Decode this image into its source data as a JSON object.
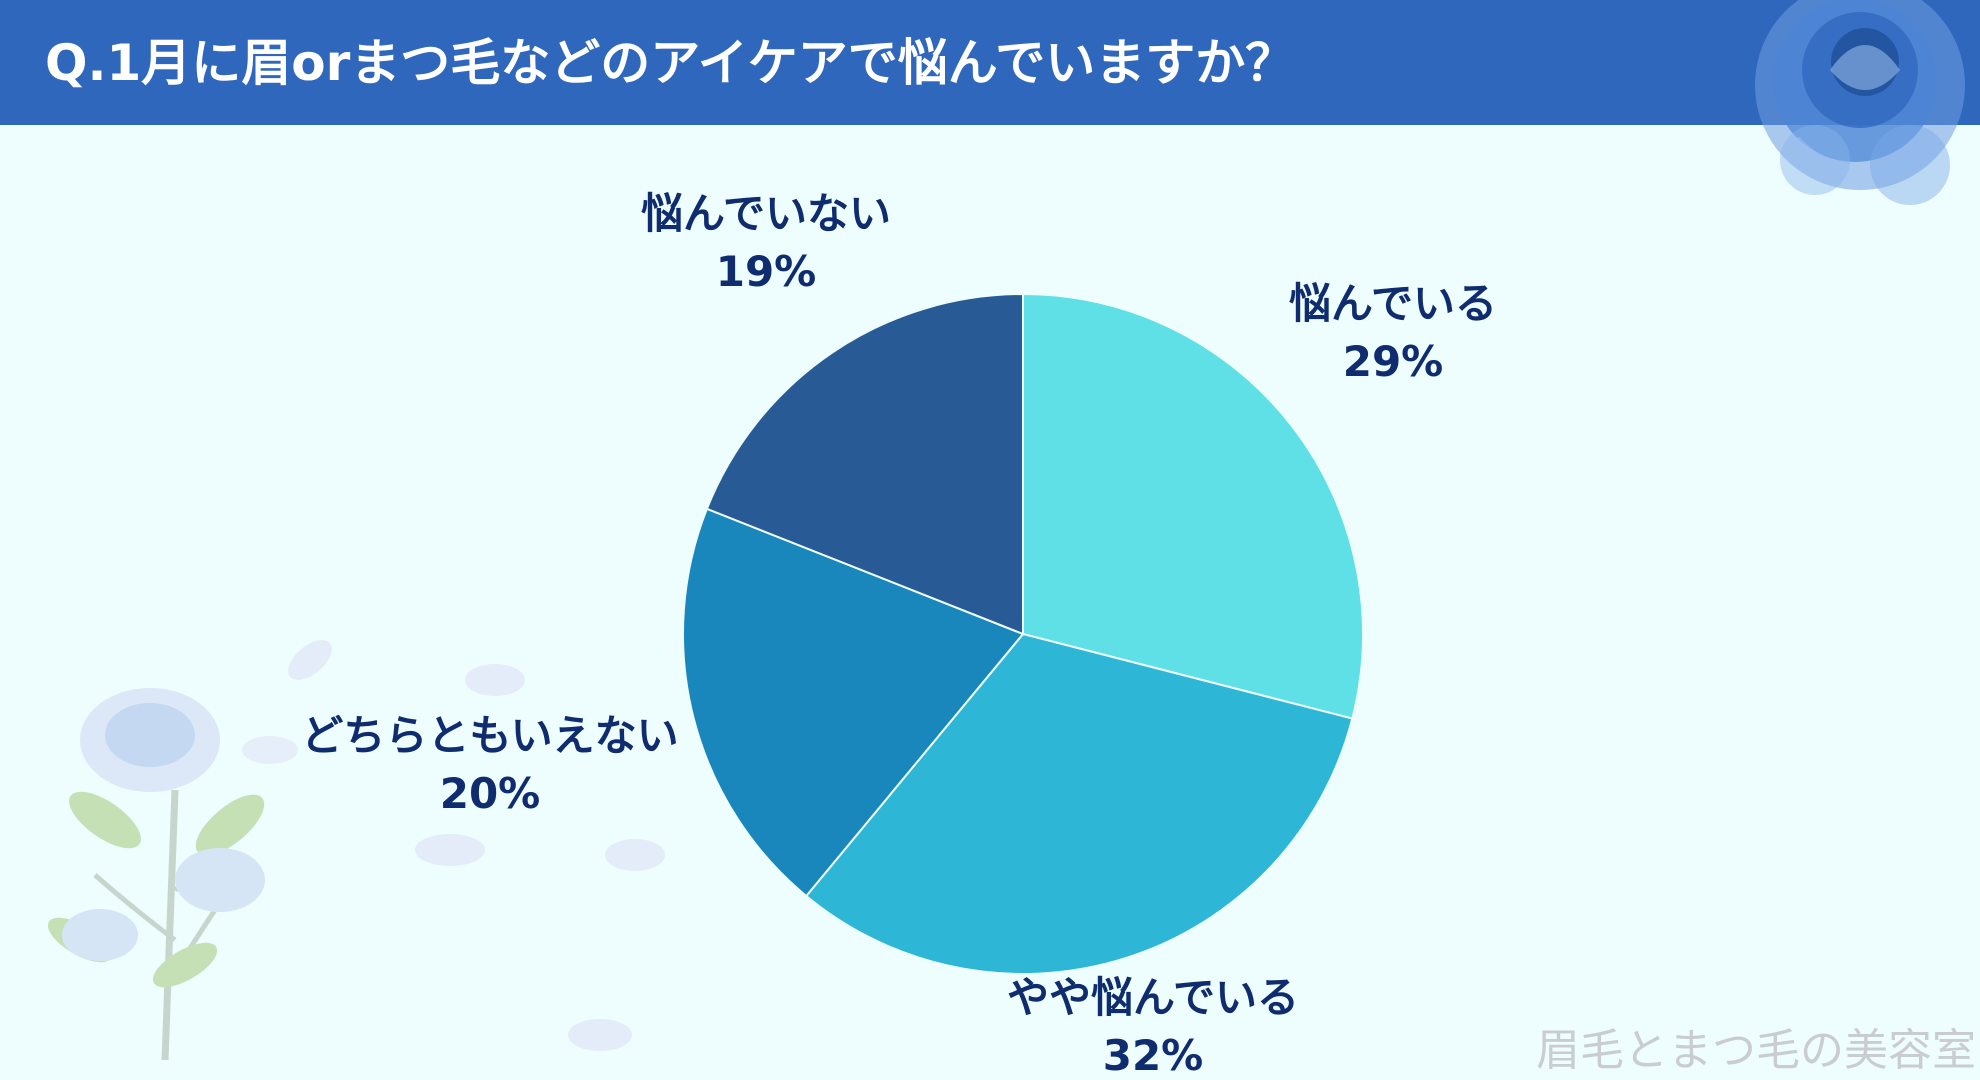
{
  "header": {
    "title": "Q.1月に眉orまつ毛などのアイケアで悩んでいますか？"
  },
  "watermark": "眉毛とまつ毛の美容室",
  "colors": {
    "header_bg": "#2f67bd",
    "page_bg": "#eefdfd",
    "label_text": "#0f2c6e"
  },
  "chart_data": {
    "type": "pie",
    "title": "Q.1月に眉orまつ毛などのアイケアで悩んでいますか？",
    "start": "12 o'clock, clockwise",
    "slices": [
      {
        "label": "悩んでいる",
        "value": 29,
        "value_label": "29%",
        "color": "#5ee0e6"
      },
      {
        "label": "やや悩んでいる",
        "value": 32,
        "value_label": "32%",
        "color": "#2eb6d6"
      },
      {
        "label": "どちらともいえない",
        "value": 20,
        "value_label": "20%",
        "color": "#1987bb"
      },
      {
        "label": "悩んでいない",
        "value": 19,
        "value_label": "19%",
        "color": "#285b96"
      }
    ]
  }
}
